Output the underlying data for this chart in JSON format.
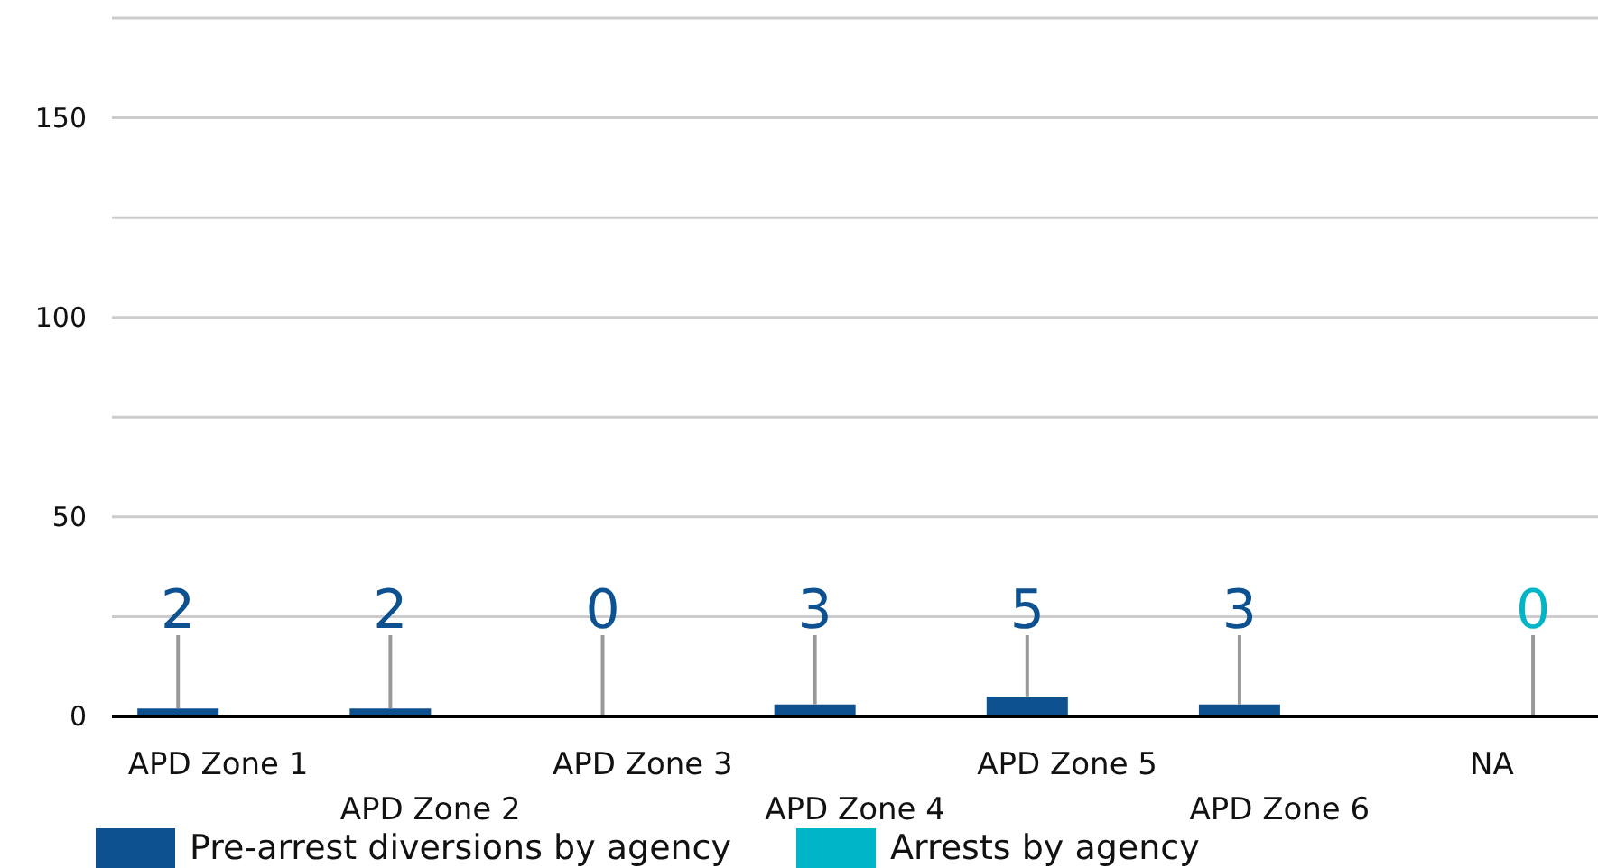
{
  "chart_data": {
    "type": "bar",
    "categories": [
      "APD Zone 1",
      "APD Zone 2",
      "APD Zone 3",
      "APD Zone 4",
      "APD Zone 5",
      "APD Zone 6",
      "NA"
    ],
    "series": [
      {
        "name": "Pre-arrest diversions by agency",
        "color": "#0d5190",
        "values": [
          2,
          2,
          0,
          3,
          5,
          3,
          null
        ]
      },
      {
        "name": "Arrests by agency",
        "color": "#00b5c8",
        "values": [
          null,
          null,
          null,
          null,
          null,
          null,
          0
        ]
      }
    ],
    "ylim": [
      0,
      175
    ],
    "yticks": [
      0,
      {
        "value": 25,
        "label": null
      },
      50,
      {
        "value": 75,
        "label": null
      },
      100,
      {
        "value": 125,
        "label": null
      },
      150,
      {
        "value": 175,
        "label": null
      }
    ],
    "grid": "y",
    "legend": "bottom left",
    "data_labels": true
  }
}
